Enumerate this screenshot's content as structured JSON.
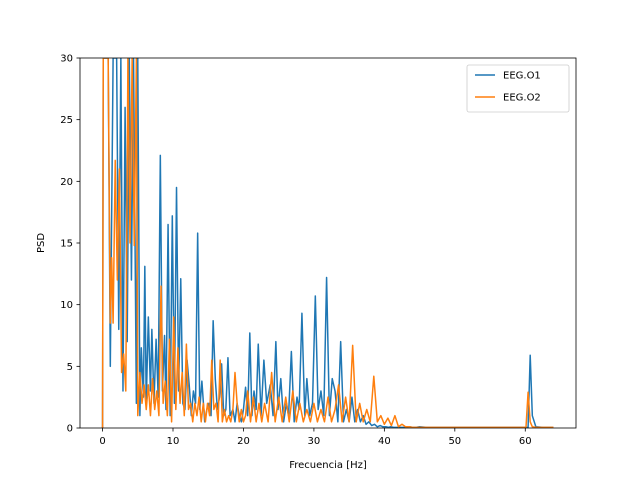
{
  "chart_data": {
    "type": "line",
    "title": "",
    "xlabel": "Frecuencia [Hz]",
    "ylabel": "PSD",
    "xlim": [
      -3.2,
      67.2
    ],
    "ylim": [
      0,
      30
    ],
    "x_ticks": [
      0,
      10,
      20,
      30,
      40,
      50,
      60
    ],
    "y_ticks": [
      0,
      5,
      10,
      15,
      20,
      25,
      30
    ],
    "grid": false,
    "legend_position": "upper right",
    "series": [
      {
        "name": "EEG.O1",
        "color": "#1f77b4",
        "x": [
          0,
          0.1,
          0.4,
          0.8,
          1.1,
          1.5,
          1.7,
          2.0,
          2.3,
          2.6,
          2.9,
          3.2,
          3.5,
          3.8,
          4.1,
          4.4,
          4.8,
          5.0,
          5.3,
          5.5,
          5.8,
          6.0,
          6.2,
          6.5,
          6.8,
          7.0,
          7.3,
          7.6,
          7.9,
          8.2,
          8.5,
          8.8,
          9.0,
          9.3,
          9.6,
          9.9,
          10.2,
          10.5,
          10.8,
          11.1,
          11.4,
          11.7,
          12.0,
          12.3,
          12.6,
          12.9,
          13.2,
          13.5,
          13.8,
          14.1,
          14.5,
          14.8,
          15.1,
          15.4,
          15.7,
          16.0,
          16.3,
          16.6,
          16.9,
          17.2,
          17.5,
          17.8,
          18.1,
          18.5,
          18.8,
          19.1,
          19.4,
          19.7,
          20.0,
          20.3,
          20.6,
          20.9,
          21.2,
          21.5,
          21.8,
          22.1,
          22.5,
          22.9,
          23.3,
          23.8,
          24.2,
          24.6,
          24.9,
          25.3,
          25.7,
          26.1,
          26.4,
          26.8,
          27.2,
          27.6,
          27.9,
          28.3,
          28.7,
          29.0,
          29.4,
          29.8,
          30.2,
          30.6,
          31.0,
          31.4,
          31.8,
          32.2,
          32.6,
          33.0,
          33.4,
          33.8,
          34.2,
          34.6,
          35.0,
          35.4,
          35.8,
          36.2,
          36.6,
          37.0,
          37.4,
          37.8,
          38.2,
          38.6,
          39.0,
          39.4,
          39.8,
          40.2,
          40.6,
          40.9,
          41.3,
          41.7,
          42.2,
          42.7,
          43.2,
          43.6,
          44.0,
          44.5,
          45.0,
          46.0,
          48.0,
          50.0,
          52.0,
          54.0,
          56.0,
          58.0,
          59.5,
          60.1,
          60.4,
          60.7,
          61.0,
          61.5,
          62.5,
          64.0
        ],
        "y": [
          0,
          30,
          30,
          30,
          5,
          30,
          30,
          30,
          8,
          30,
          3,
          26,
          7,
          30,
          12,
          30,
          2,
          30,
          1,
          6.5,
          2.5,
          13.1,
          2.0,
          9.0,
          3.0,
          8.0,
          2.0,
          7.2,
          2.5,
          22.1,
          3.0,
          7.5,
          1.5,
          16.5,
          1.0,
          17.2,
          2.0,
          19.5,
          3.0,
          12.1,
          2.0,
          1.5,
          5.5,
          3.5,
          1.0,
          3.0,
          2.0,
          15.8,
          1.5,
          3.8,
          0.5,
          1.5,
          2.0,
          1.0,
          8.7,
          4.0,
          1.5,
          2.5,
          5.2,
          1.0,
          1.5,
          5.7,
          1.0,
          1.5,
          0.5,
          2.0,
          1.0,
          0.5,
          1.5,
          3.3,
          1.0,
          7.7,
          1.0,
          3.0,
          1.5,
          6.8,
          1.0,
          5.5,
          2.0,
          3.5,
          1.0,
          7.0,
          1.5,
          4.0,
          0.5,
          2.0,
          1.0,
          6.2,
          0.5,
          2.5,
          1.5,
          9.3,
          1.0,
          4.0,
          1.0,
          2.0,
          10.7,
          1.5,
          3.0,
          1.0,
          12.2,
          1.0,
          4.0,
          3.0,
          0.5,
          7.0,
          0.5,
          1.5,
          0.5,
          2.5,
          0.5,
          1.5,
          0.5,
          1.0,
          0.3,
          0.5,
          0.2,
          0.3,
          0.1,
          0.2,
          0.1,
          0.1,
          0.05,
          0.1,
          0.05,
          0.05,
          0.05,
          0.05,
          0.05,
          0.1,
          0.05,
          0.05,
          0.1,
          0.05,
          0.05,
          0.05,
          0.05,
          0.05,
          0.05,
          0.05,
          0.05,
          0.05,
          0.05,
          5.9,
          1.0,
          0.1,
          0.05,
          0.05
        ]
      },
      {
        "name": "EEG.O2",
        "color": "#ff7f0e",
        "x": [
          0,
          0.1,
          0.4,
          0.8,
          1.1,
          1.3,
          1.5,
          1.8,
          2.1,
          2.4,
          2.7,
          3.0,
          3.3,
          3.6,
          3.9,
          4.2,
          4.5,
          4.8,
          5.0,
          5.3,
          5.6,
          5.9,
          6.2,
          6.5,
          6.8,
          7.1,
          7.4,
          7.7,
          8.0,
          8.3,
          8.6,
          8.9,
          9.2,
          9.5,
          9.8,
          10.1,
          10.4,
          10.7,
          11.0,
          11.3,
          11.6,
          11.9,
          12.2,
          12.5,
          12.8,
          13.1,
          13.4,
          13.7,
          14.0,
          14.3,
          14.6,
          14.9,
          15.2,
          15.5,
          15.8,
          16.1,
          16.4,
          16.7,
          17.0,
          17.3,
          17.6,
          17.9,
          18.2,
          18.5,
          18.8,
          19.1,
          19.4,
          19.7,
          20.0,
          20.3,
          20.6,
          21.0,
          21.4,
          21.8,
          22.2,
          22.6,
          23.0,
          23.5,
          24.0,
          24.5,
          25.0,
          25.5,
          26.0,
          26.5,
          27.0,
          27.5,
          28.0,
          28.5,
          29.0,
          29.5,
          30.0,
          30.5,
          31.0,
          31.5,
          32.0,
          32.5,
          33.0,
          33.5,
          34.0,
          34.5,
          35.0,
          35.5,
          36.0,
          36.5,
          37.0,
          37.5,
          38.0,
          38.5,
          39.0,
          39.5,
          40.0,
          40.5,
          41.0,
          41.5,
          42.0,
          42.5,
          43.0,
          43.5,
          44.0,
          44.5,
          45.0,
          46.0,
          48.0,
          50.0,
          52.0,
          54.0,
          56.0,
          58.0,
          59.5,
          60.1,
          60.4,
          60.7,
          61.0,
          61.5,
          62.5,
          64.0
        ],
        "y": [
          0,
          30,
          30,
          30,
          8.5,
          13.8,
          8.5,
          21.7,
          12.0,
          21.0,
          4.5,
          6.0,
          3.0,
          30,
          15,
          30,
          14.8,
          30,
          1.0,
          4.5,
          2.0,
          3.5,
          1.5,
          3.5,
          1.0,
          4.0,
          1.5,
          3.0,
          1.0,
          11.5,
          2.0,
          3.8,
          1.0,
          7.2,
          0.5,
          9.0,
          1.5,
          6.5,
          2.0,
          4.5,
          1.0,
          6.8,
          1.5,
          2.0,
          0.5,
          2.0,
          1.0,
          2.5,
          0.5,
          2.0,
          0.5,
          2.0,
          1.0,
          5.5,
          1.5,
          2.0,
          0.5,
          5.5,
          0.5,
          1.5,
          0.5,
          1.0,
          0.5,
          1.5,
          4.5,
          2.0,
          0.5,
          1.5,
          0.5,
          1.0,
          3.0,
          0.5,
          2.5,
          0.5,
          2.0,
          0.5,
          2.0,
          0.5,
          4.5,
          0.5,
          2.5,
          0.5,
          2.5,
          0.5,
          3.0,
          0.5,
          2.0,
          0.5,
          1.5,
          0.5,
          2.0,
          0.5,
          1.5,
          0.5,
          2.5,
          0.5,
          1.5,
          3.5,
          0.5,
          2.5,
          0.5,
          6.7,
          0.5,
          2.0,
          0.5,
          1.5,
          0.5,
          4.2,
          0.5,
          1.0,
          0.3,
          0.8,
          0.2,
          1.0,
          0.1,
          0.3,
          0.1,
          0.1,
          0.05,
          0.05,
          0.05,
          0.05,
          0.05,
          0.05,
          0.05,
          0.05,
          0.05,
          0.05,
          0.05,
          0.05,
          2.9,
          0.5,
          0.1,
          0.05,
          0.05,
          0.05
        ]
      }
    ]
  }
}
